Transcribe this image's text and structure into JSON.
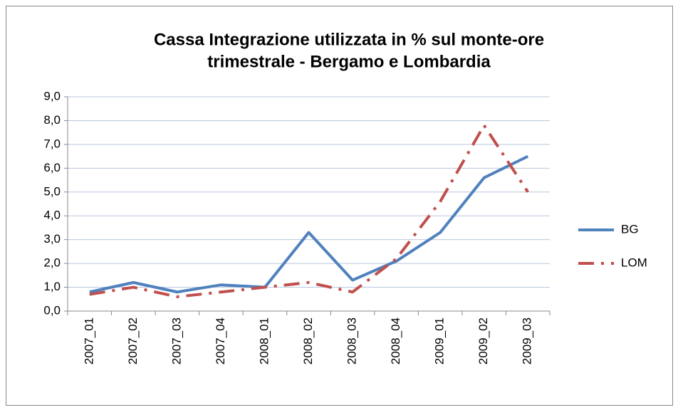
{
  "chart_data": {
    "type": "line",
    "title": [
      "Cassa Integrazione utilizzata in % sul monte-ore",
      "trimestrale - Bergamo e Lombardia"
    ],
    "categories": [
      "2007_01",
      "2007_02",
      "2007_03",
      "2007_04",
      "2008_01",
      "2008_02",
      "2008_03",
      "2008_04",
      "2009_01",
      "2009_02",
      "2009_03"
    ],
    "series": [
      {
        "name": "BG",
        "color": "#4f81bd",
        "dash": "solid",
        "values": [
          0.8,
          1.2,
          0.8,
          1.1,
          1.0,
          3.3,
          1.3,
          2.1,
          3.3,
          5.6,
          6.5
        ]
      },
      {
        "name": "LOM",
        "color": "#c0504d",
        "dash": "dash-dot",
        "values": [
          0.7,
          1.0,
          0.6,
          0.8,
          1.0,
          1.2,
          0.8,
          2.2,
          4.6,
          7.8,
          5.0
        ]
      }
    ],
    "ylim": [
      0,
      9
    ],
    "yticks": [
      {
        "value": 0,
        "label": "0,0"
      },
      {
        "value": 1,
        "label": "1,0"
      },
      {
        "value": 2,
        "label": "2,0"
      },
      {
        "value": 3,
        "label": "3,0"
      },
      {
        "value": 4,
        "label": "4,0"
      },
      {
        "value": 5,
        "label": "5,0"
      },
      {
        "value": 6,
        "label": "6,0"
      },
      {
        "value": 7,
        "label": "7,0"
      },
      {
        "value": 8,
        "label": "8,0"
      },
      {
        "value": 9,
        "label": "9,0"
      }
    ],
    "grid": true,
    "legend": "right"
  }
}
